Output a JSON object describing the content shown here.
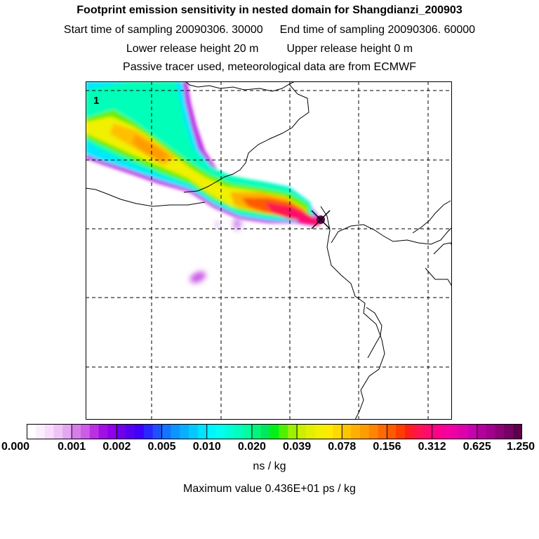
{
  "title": "Footprint emission sensitivity in nested domain for Shangdianzi_200903",
  "sampling": {
    "start_label": "Start time of sampling 20090306. 30000",
    "end_label": "End time of sampling 20090306. 60000"
  },
  "release": {
    "lower_label": "Lower release height   20 m",
    "upper_label": "Upper release height    0 m"
  },
  "tracer_note": "Passive tracer used, meteorological data are from ECMWF",
  "map": {
    "panel_label": "1",
    "receptor_marker": "station-cross-icon"
  },
  "colorbar": {
    "ticks": [
      "0.000",
      "0.001",
      "0.002",
      "0.005",
      "0.010",
      "0.020",
      "0.039",
      "0.078",
      "0.156",
      "0.312",
      "0.625",
      "1.250"
    ],
    "colors": [
      [
        "#ffffff",
        "#fbeefd",
        "#f7dcfb",
        "#efc3f6",
        "#e3a6f1"
      ],
      [
        "#d77de9",
        "#cb5ce6",
        "#bb2fe3",
        "#a20ee6",
        "#8d00e9"
      ],
      [
        "#6e00eb",
        "#5500f0",
        "#3d00ff",
        "#2a26ff",
        "#1e50ff"
      ],
      [
        "#1375ff",
        "#0c94ff",
        "#06b0ff",
        "#03c9ff",
        "#00e2ff"
      ],
      [
        "#00f5ff",
        "#00fff0",
        "#00ffd8",
        "#00ffbd",
        "#00ffa0"
      ],
      [
        "#00f57a",
        "#00e85a",
        "#00f018",
        "#50f000",
        "#9cf000"
      ],
      [
        "#c8f000",
        "#e2ef00",
        "#f0f000",
        "#ffea00",
        "#ffd800"
      ],
      [
        "#ffc400",
        "#ffb000",
        "#ff9d00",
        "#ff8500",
        "#ff6a00"
      ],
      [
        "#ff5a00",
        "#ff3c00",
        "#ff1e1e",
        "#ff1450",
        "#ff0a6e"
      ],
      [
        "#ff0088",
        "#f8009b",
        "#ec00a8",
        "#dc00ad",
        "#c800ad"
      ],
      [
        "#b4009f",
        "#a0008c",
        "#8c0078",
        "#760063",
        "#5c004b"
      ]
    ],
    "unit": "ns / kg"
  },
  "max_value_label": "Maximum value  0.436E+01 ps / kg"
}
